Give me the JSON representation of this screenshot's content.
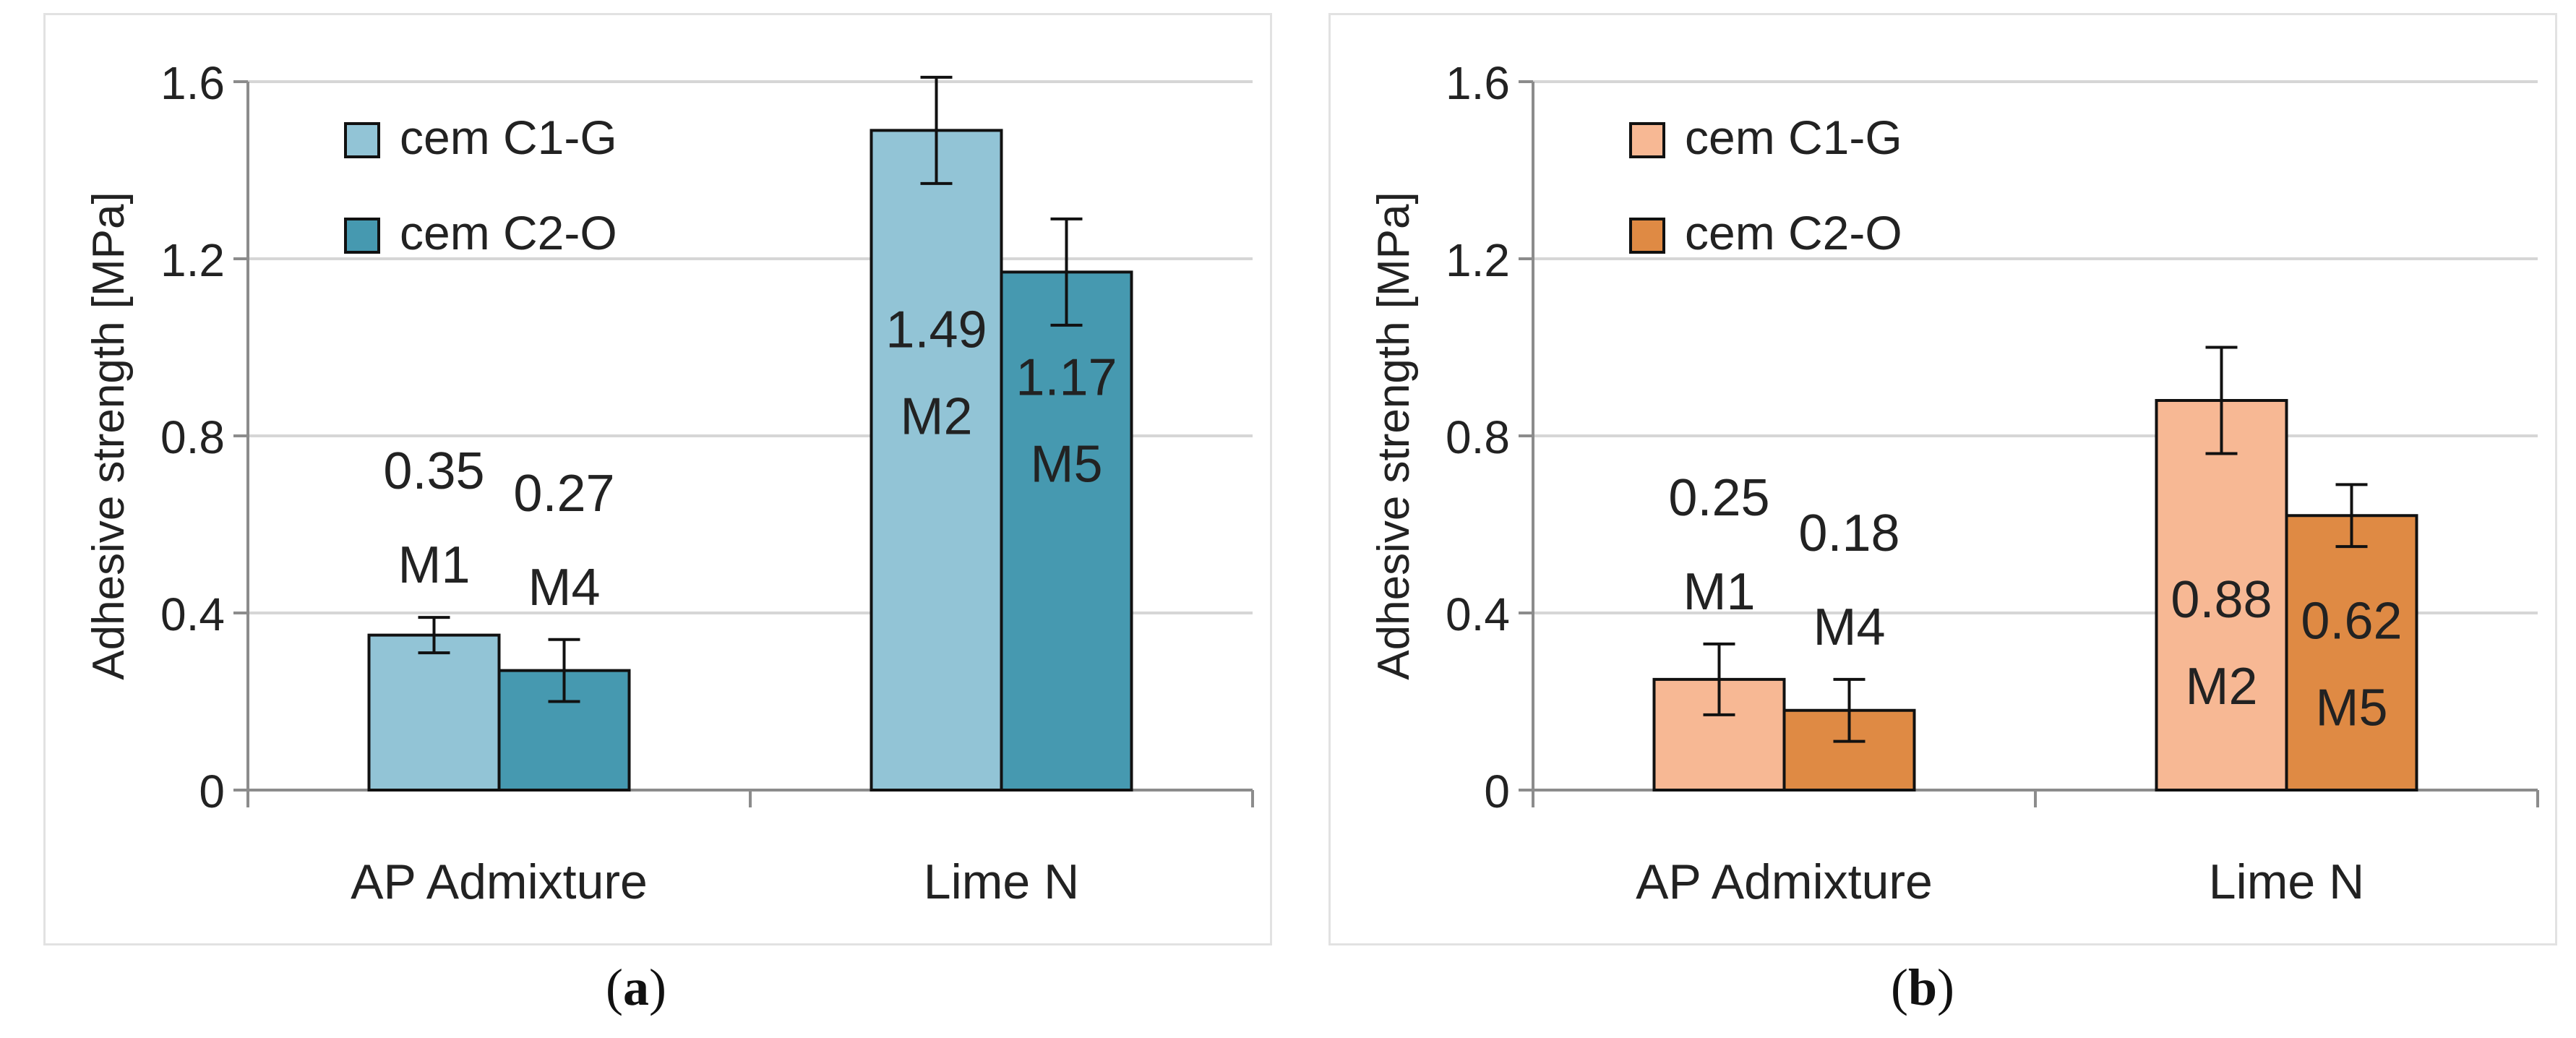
{
  "chart_data": [
    {
      "type": "bar",
      "panel_label": "a",
      "categories": [
        "AP Admixture",
        "Lime N"
      ],
      "series": [
        {
          "name": "cem C1-G",
          "color": "#92c4d6",
          "values": [
            0.35,
            1.49
          ],
          "errors": [
            0.04,
            0.12
          ],
          "labels": [
            "0.35",
            "1.49"
          ],
          "mixes": [
            "M1",
            "M2"
          ]
        },
        {
          "name": "cem C2-O",
          "color": "#4699b0",
          "values": [
            0.27,
            1.17
          ],
          "errors": [
            0.07,
            0.12
          ],
          "labels": [
            "0.27",
            "1.17"
          ],
          "mixes": [
            "M4",
            "M5"
          ]
        }
      ],
      "ylabel": "Adhesive strength  [MPa]",
      "ylim": [
        0,
        1.6
      ],
      "yticks": [
        "0",
        "0.4",
        "0.8",
        "1.2",
        "1.6"
      ],
      "grid": true,
      "legend_position": "top-left"
    },
    {
      "type": "bar",
      "panel_label": "b",
      "categories": [
        "AP Admixture",
        "Lime N"
      ],
      "series": [
        {
          "name": "cem C1-G",
          "color": "#f7b894",
          "values": [
            0.25,
            0.88
          ],
          "errors": [
            0.08,
            0.12
          ],
          "labels": [
            "0.25",
            "0.88"
          ],
          "mixes": [
            "M1",
            "M2"
          ]
        },
        {
          "name": "cem C2-O",
          "color": "#df8a44",
          "values": [
            0.18,
            0.62
          ],
          "errors": [
            0.07,
            0.07
          ],
          "labels": [
            "0.18",
            "0.62"
          ],
          "mixes": [
            "M4",
            "M5"
          ]
        }
      ],
      "ylabel": "Adhesive strength  [MPa]",
      "ylim": [
        0,
        1.6
      ],
      "yticks": [
        "0",
        "0.4",
        "0.8",
        "1.2",
        "1.6"
      ],
      "grid": true,
      "legend_position": "top-left"
    }
  ]
}
